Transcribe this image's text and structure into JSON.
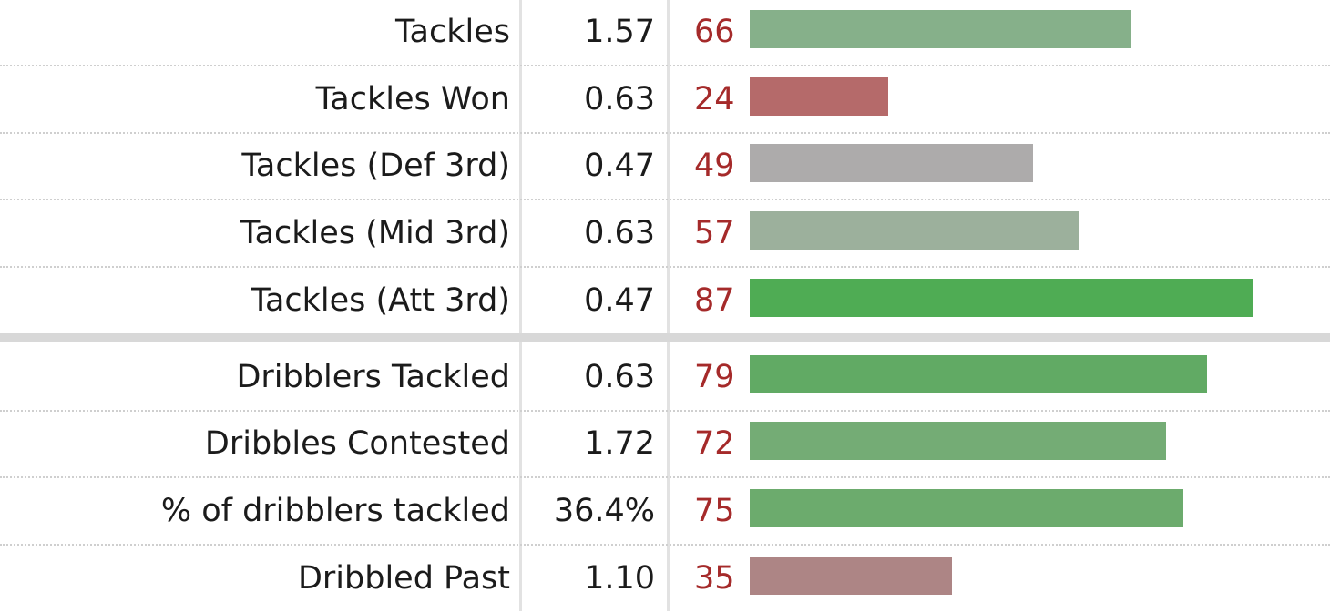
{
  "chart_data": {
    "type": "bar",
    "xlim": [
      0,
      100
    ],
    "groups": [
      {
        "rows": [
          {
            "label": "Tackles",
            "value": "1.57",
            "percentile": 66,
            "color": "#86b08a"
          },
          {
            "label": "Tackles Won",
            "value": "0.63",
            "percentile": 24,
            "color": "#b56a6a"
          },
          {
            "label": "Tackles (Def 3rd)",
            "value": "0.47",
            "percentile": 49,
            "color": "#adabab"
          },
          {
            "label": "Tackles (Mid 3rd)",
            "value": "0.63",
            "percentile": 57,
            "color": "#9cb09c"
          },
          {
            "label": "Tackles (Att 3rd)",
            "value": "0.47",
            "percentile": 87,
            "color": "#4fac54"
          }
        ]
      },
      {
        "rows": [
          {
            "label": "Dribblers Tackled",
            "value": "0.63",
            "percentile": 79,
            "color": "#61aa64"
          },
          {
            "label": "Dribbles Contested",
            "value": "1.72",
            "percentile": 72,
            "color": "#74ac75"
          },
          {
            "label": "% of dribblers tackled",
            "value": "36.4%",
            "percentile": 75,
            "color": "#6cab6d"
          },
          {
            "label": "Dribbled Past",
            "value": "1.10",
            "percentile": 35,
            "color": "#ad8585"
          }
        ]
      }
    ]
  }
}
